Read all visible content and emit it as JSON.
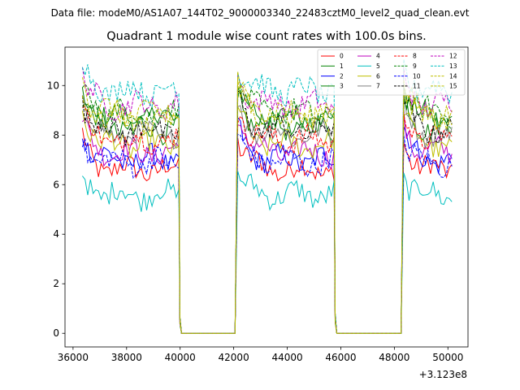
{
  "chart_data": {
    "type": "line",
    "suptitle": "Data file: modeM0/AS1A07_144T02_9000003340_22483cztM0_level2_quad_clean.evt",
    "title": "Quadrant 1 module wise count rates with 100.0s bins.",
    "xlabel": "",
    "ylabel": "",
    "x_offset_label": "+3.123e8",
    "xlim": [
      35700,
      50750
    ],
    "ylim": [
      -0.55,
      11.55
    ],
    "xticks": [
      36000,
      38000,
      40000,
      42000,
      44000,
      46000,
      48000,
      50000
    ],
    "yticks": [
      0,
      2,
      4,
      6,
      8,
      10
    ],
    "xtick_labels": [
      "36000",
      "38000",
      "40000",
      "42000",
      "44000",
      "46000",
      "48000",
      "50000"
    ],
    "ytick_labels": [
      "0",
      "2",
      "4",
      "6",
      "8",
      "10"
    ],
    "segments": [
      {
        "start": 36350,
        "end": 39950,
        "decay": 0.00055
      },
      {
        "start": 42150,
        "end": 45750,
        "decay": 0.00045
      },
      {
        "start": 48350,
        "end": 50150,
        "decay": 0.0006
      }
    ],
    "gaps": [
      [
        40050,
        42050
      ],
      [
        45850,
        48250
      ]
    ],
    "bin_seconds": 100,
    "legend_location": "upper right",
    "series": [
      {
        "name": "0",
        "color": "#ff0000",
        "dash": "solid",
        "level": 6.6,
        "peak": 7.9
      },
      {
        "name": "1",
        "color": "#008000",
        "dash": "solid",
        "level": 8.7,
        "peak": 9.9
      },
      {
        "name": "2",
        "color": "#0000ff",
        "dash": "solid",
        "level": 7.0,
        "peak": 8.3
      },
      {
        "name": "3",
        "color": "#008000",
        "dash": "solid",
        "level": 8.3,
        "peak": 9.6
      },
      {
        "name": "4",
        "color": "#bf00bf",
        "dash": "solid",
        "level": 7.3,
        "peak": 8.6
      },
      {
        "name": "5",
        "color": "#00bfbf",
        "dash": "solid",
        "level": 5.6,
        "peak": 6.4
      },
      {
        "name": "6",
        "color": "#bfbf00",
        "dash": "solid",
        "level": 7.6,
        "peak": 9.2
      },
      {
        "name": "7",
        "color": "#808080",
        "dash": "solid",
        "level": 8.0,
        "peak": 9.4
      },
      {
        "name": "8",
        "color": "#ff0000",
        "dash": "dashed",
        "level": 7.8,
        "peak": 9.0
      },
      {
        "name": "9",
        "color": "#008000",
        "dash": "dashed",
        "level": 8.9,
        "peak": 10.1
      },
      {
        "name": "10",
        "color": "#0000ff",
        "dash": "dashed",
        "level": 6.9,
        "peak": 7.8
      },
      {
        "name": "11",
        "color": "#000000",
        "dash": "dashed",
        "level": 8.2,
        "peak": 9.5
      },
      {
        "name": "12",
        "color": "#bf00bf",
        "dash": "dashed",
        "level": 9.2,
        "peak": 10.5
      },
      {
        "name": "13",
        "color": "#00bfbf",
        "dash": "dashed",
        "level": 9.8,
        "peak": 10.9
      },
      {
        "name": "14",
        "color": "#bfbf00",
        "dash": "dashed",
        "level": 8.6,
        "peak": 10.3
      },
      {
        "name": "15",
        "color": "#bfbf00",
        "dash": "dashed",
        "level": 8.9,
        "peak": 10.0
      }
    ]
  }
}
